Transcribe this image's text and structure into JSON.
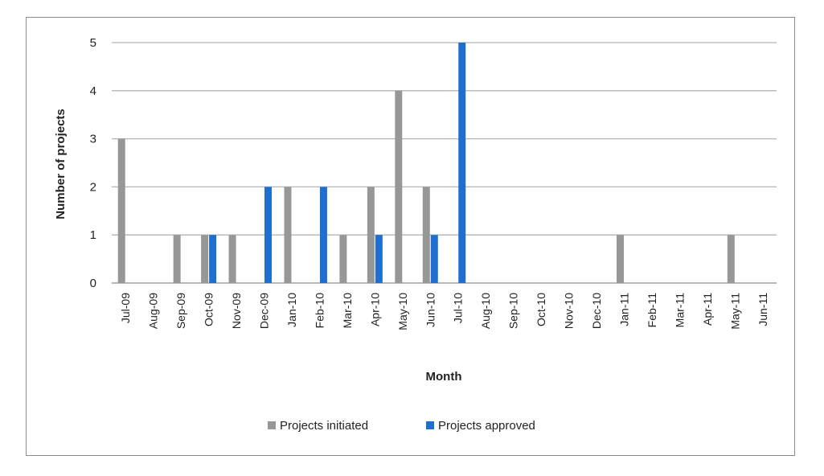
{
  "chart_data": {
    "type": "bar",
    "title": "",
    "xlabel": "Month",
    "ylabel": "Number of projects",
    "ylim": [
      0,
      5
    ],
    "yticks": [
      0,
      1,
      2,
      3,
      4,
      5
    ],
    "grid": true,
    "legend_position": "bottom",
    "categories": [
      "Jul-09",
      "Aug-09",
      "Sep-09",
      "Oct-09",
      "Nov-09",
      "Dec-09",
      "Jan-10",
      "Feb-10",
      "Mar-10",
      "Apr-10",
      "May-10",
      "Jun-10",
      "Jul-10",
      "Aug-10",
      "Sep-10",
      "Oct-10",
      "Nov-10",
      "Dec-10",
      "Jan-11",
      "Feb-11",
      "Mar-11",
      "Apr-11",
      "May-11",
      "Jun-11"
    ],
    "series": [
      {
        "name": "Projects initiated",
        "color": "#979797",
        "values": [
          3,
          0,
          1,
          1,
          1,
          0,
          2,
          0,
          1,
          2,
          4,
          2,
          0,
          0,
          0,
          0,
          0,
          0,
          1,
          0,
          0,
          0,
          1,
          0
        ]
      },
      {
        "name": "Projects approved",
        "color": "#1f6fd1",
        "values": [
          0,
          0,
          0,
          1,
          0,
          2,
          0,
          2,
          0,
          1,
          0,
          1,
          5,
          0,
          0,
          0,
          0,
          0,
          0,
          0,
          0,
          0,
          0,
          0
        ]
      }
    ]
  }
}
